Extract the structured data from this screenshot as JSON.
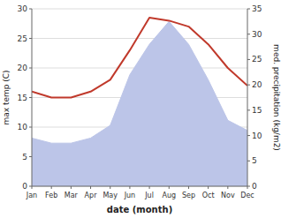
{
  "chart_data": {
    "type": "line",
    "categories": [
      "Jan",
      "Feb",
      "Mar",
      "Apr",
      "May",
      "Jun",
      "Jul",
      "Aug",
      "Sep",
      "Oct",
      "Nov",
      "Dec"
    ],
    "series": [
      {
        "type": "line",
        "color": "#c0392b",
        "values": [
          16.0,
          15.0,
          15.0,
          16.0,
          18.0,
          23.0,
          28.5,
          28.0,
          27.0,
          24.0,
          20.0,
          17.0
        ]
      },
      {
        "type": "area",
        "axis": "y2",
        "color": "#bcc5e8",
        "values": [
          9.5,
          8.5,
          8.5,
          9.5,
          12.0,
          22.0,
          28.0,
          32.5,
          28.0,
          21.0,
          13.0,
          11.0
        ]
      }
    ],
    "x_label": "date (month)",
    "y_label": "max temp (C)",
    "y2_label": "med. precipitation (kg/m2)",
    "ylim": [
      0,
      30
    ],
    "yticks": [
      0,
      5,
      10,
      15,
      20,
      25,
      30
    ],
    "y2lim": [
      0,
      35
    ],
    "y2ticks": [
      0,
      5,
      10,
      15,
      20,
      25,
      30,
      35
    ],
    "grid": true
  }
}
